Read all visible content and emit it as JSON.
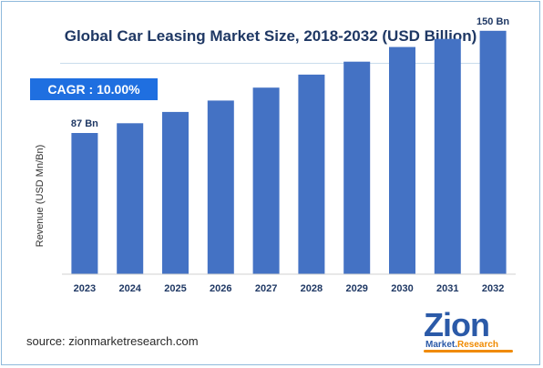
{
  "chart_data": {
    "type": "bar",
    "title": "Global Car Leasing Market Size, 2018-2032 (USD Billion)",
    "ylabel": "Revenue (USD Mn/Bn)",
    "xlabel": "",
    "categories": [
      "2023",
      "2024",
      "2025",
      "2026",
      "2027",
      "2028",
      "2029",
      "2030",
      "2031",
      "2032"
    ],
    "values": [
      87,
      93,
      100,
      107,
      115,
      123,
      131,
      140,
      145,
      150
    ],
    "data_labels": [
      {
        "category": "2023",
        "text": "87 Bn"
      },
      {
        "category": "2032",
        "text": "150 Bn"
      }
    ],
    "ylim": [
      0,
      160
    ],
    "grid": false,
    "bar_color": "#4472c4"
  },
  "annotation": {
    "cagr": "CAGR :  10.00%"
  },
  "source": "source: zionmarketresearch.com",
  "logo": {
    "main": "Zion",
    "sub1": "Market.",
    "sub2": "Research"
  },
  "colors": {
    "accent": "#1f6fe0",
    "title": "#1f3864",
    "logo_blue": "#2b5aa8",
    "logo_orange": "#f08a00"
  }
}
